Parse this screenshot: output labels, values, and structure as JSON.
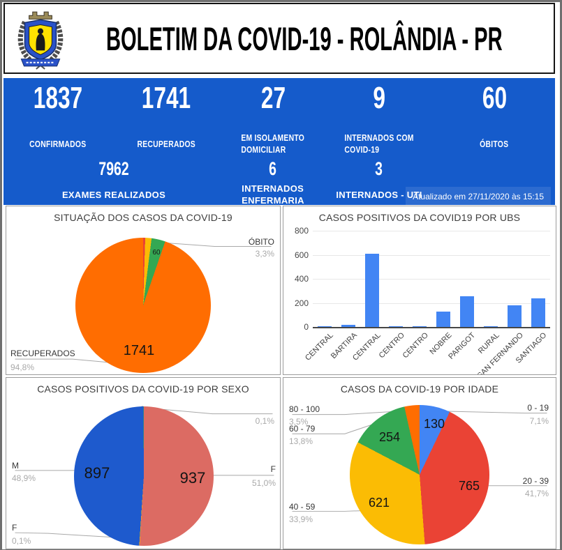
{
  "header": {
    "title": "BOLETIM DA COVID-19 - ROLÂNDIA - PR",
    "logo": "rolandia-city-crest"
  },
  "stats": {
    "row1": [
      {
        "value": "1837",
        "label": "CONFIRMADOS"
      },
      {
        "value": "1741",
        "label": "RECUPERADOS"
      },
      {
        "value": "27",
        "label": "EM ISOLAMENTO\nDOMICILIAR"
      },
      {
        "value": "9",
        "label": "INTERNADOS COM\nCOVID-19"
      },
      {
        "value": "60",
        "label": "ÓBITOS"
      }
    ],
    "row2": [
      {
        "value": "7962",
        "label": "EXAMES REALIZADOS"
      },
      {
        "value": "6",
        "label": "INTERNADOS\nENFERMARIA"
      },
      {
        "value": "3",
        "label": "INTERNADOS - UTI"
      }
    ],
    "updated": "Atualizado em 27/11/2020 às 15:15"
  },
  "colors": {
    "banner_blue": "#155BCB",
    "bar_blue": "#4285F4",
    "orange": "#FF6D01",
    "red": "#EA4335",
    "yellow": "#FBBC04",
    "green": "#34A853",
    "pie_blue_dark": "#1E5ACD",
    "salmon": "#DC6B63"
  },
  "chart_data": [
    {
      "type": "pie",
      "title": "SITUAÇÃO DOS CASOS DA COVID-19",
      "slices": [
        {
          "name": "",
          "pct": 0.5,
          "pct_label": "",
          "value": "",
          "color": "#EA4335"
        },
        {
          "name": "",
          "pct": 1.5,
          "pct_label": "",
          "value": "",
          "color": "#FBBC04"
        },
        {
          "name": "ÓBITO",
          "pct": 3.3,
          "pct_label": "3,3%",
          "value": "60",
          "color": "#34A853"
        },
        {
          "name": "RECUPERADOS",
          "pct": 94.8,
          "pct_label": "94,8%",
          "value": "1741",
          "color": "#FF6D01"
        }
      ]
    },
    {
      "type": "bar",
      "title": "CASOS POSITIVOS DA COVID19 POR UBS",
      "categories": [
        "CENTRAL",
        "BARTIRA",
        "CENTRAL",
        "CENTRO",
        "CENTRO",
        "NOBRE",
        "PARIGOT",
        "RURAL",
        "SAN FERNANDO",
        "SANTIAGO"
      ],
      "values": [
        2,
        15,
        610,
        2,
        2,
        130,
        255,
        2,
        180,
        235
      ],
      "ylim": [
        0,
        800
      ],
      "yticks": [
        0,
        200,
        400,
        600,
        800
      ],
      "bar_color": "#4285F4",
      "grid": true,
      "legend": "none"
    },
    {
      "type": "pie",
      "title": "CASOS POSITIVOS DA COVID-19 POR SEXO",
      "slices": [
        {
          "name": "F",
          "pct": 51.0,
          "pct_label": "51,0%",
          "value": "937",
          "color": "#DC6B63"
        },
        {
          "name": "F",
          "pct": 0.1,
          "pct_label": "0,1%",
          "value": "",
          "color": "#FBBC04"
        },
        {
          "name": "M",
          "pct": 48.9,
          "pct_label": "48,9%",
          "value": "897",
          "color": "#1E5ACD"
        },
        {
          "name": "",
          "pct": 0.1,
          "pct_label": "0,1%",
          "value": "",
          "color": "#34A853"
        }
      ]
    },
    {
      "type": "pie",
      "title": "CASOS DA COVID-19 POR IDADE",
      "slices": [
        {
          "name": "0 - 19",
          "pct": 7.1,
          "pct_label": "7,1%",
          "value": "130",
          "color": "#4285F4"
        },
        {
          "name": "20 - 39",
          "pct": 41.7,
          "pct_label": "41,7%",
          "value": "765",
          "color": "#EA4335"
        },
        {
          "name": "40 - 59",
          "pct": 33.9,
          "pct_label": "33,9%",
          "value": "621",
          "color": "#FBBC04"
        },
        {
          "name": "60 - 79",
          "pct": 13.8,
          "pct_label": "13,8%",
          "value": "254",
          "color": "#34A853"
        },
        {
          "name": "80 - 100",
          "pct": 3.5,
          "pct_label": "3,5%",
          "value": "",
          "color": "#FF6D01"
        }
      ]
    }
  ]
}
